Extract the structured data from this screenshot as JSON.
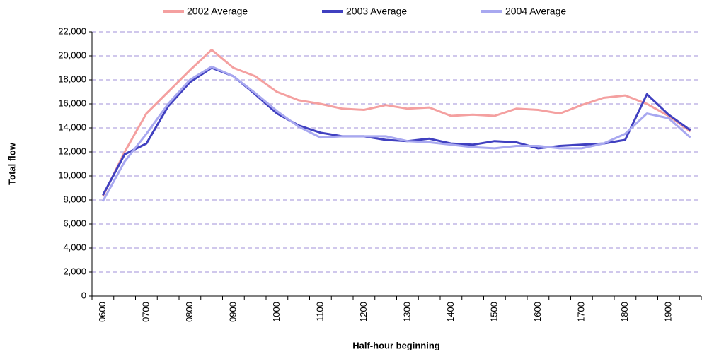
{
  "chart_data": {
    "type": "line",
    "x_label": "Half-hour beginning",
    "y_label": "Total flow",
    "categories": [
      "0600",
      null,
      "0700",
      null,
      "0800",
      null,
      "0900",
      null,
      "1000",
      null,
      "1100",
      null,
      "1200",
      null,
      "1300",
      null,
      "1400",
      null,
      "1500",
      null,
      "1600",
      null,
      "1700",
      null,
      "1800",
      null,
      "1900",
      null
    ],
    "series": [
      {
        "name": "2002 Average",
        "color": "#f4a0a0",
        "values": [
          8300,
          12000,
          15200,
          17000,
          18800,
          20500,
          19000,
          18300,
          17000,
          16300,
          16000,
          15600,
          15500,
          15900,
          15600,
          15700,
          15000,
          15100,
          15000,
          15600,
          15500,
          15200,
          15900,
          16500,
          16700,
          16000,
          15000,
          13700
        ]
      },
      {
        "name": "2003 Average",
        "color": "#4040c0",
        "values": [
          8400,
          11800,
          12700,
          15800,
          17800,
          19000,
          18300,
          16800,
          15200,
          14200,
          13600,
          13300,
          13300,
          13000,
          12900,
          13100,
          12700,
          12600,
          12900,
          12800,
          12300,
          12500,
          12600,
          12700,
          13000,
          16800,
          15100,
          13800
        ]
      },
      {
        "name": "2004 Average",
        "color": "#a8a8f0",
        "values": [
          7900,
          11200,
          13500,
          16000,
          18000,
          19100,
          18300,
          16900,
          15400,
          14100,
          13200,
          13300,
          13300,
          13300,
          12900,
          12800,
          12600,
          12400,
          12300,
          12500,
          12500,
          12300,
          12300,
          12700,
          13500,
          15200,
          14800,
          13200
        ]
      }
    ],
    "ylim": [
      0,
      22000
    ],
    "yticks": [
      0,
      {
        "value": 2000,
        "label": "2,000"
      },
      {
        "value": 4000,
        "label": "4,000"
      },
      {
        "value": 6000,
        "label": "6,000"
      },
      {
        "value": 8000,
        "label": "8,000"
      },
      {
        "value": 10000,
        "label": "10,000"
      },
      {
        "value": 12000,
        "label": "12,000"
      },
      {
        "value": 14000,
        "label": "14,000"
      },
      {
        "value": 16000,
        "label": "16,000"
      },
      {
        "value": 18000,
        "label": "18,000"
      },
      {
        "value": 20000,
        "label": "20,000"
      },
      {
        "value": 22000,
        "label": "22,000"
      }
    ],
    "grid": true,
    "legend": "top"
  }
}
